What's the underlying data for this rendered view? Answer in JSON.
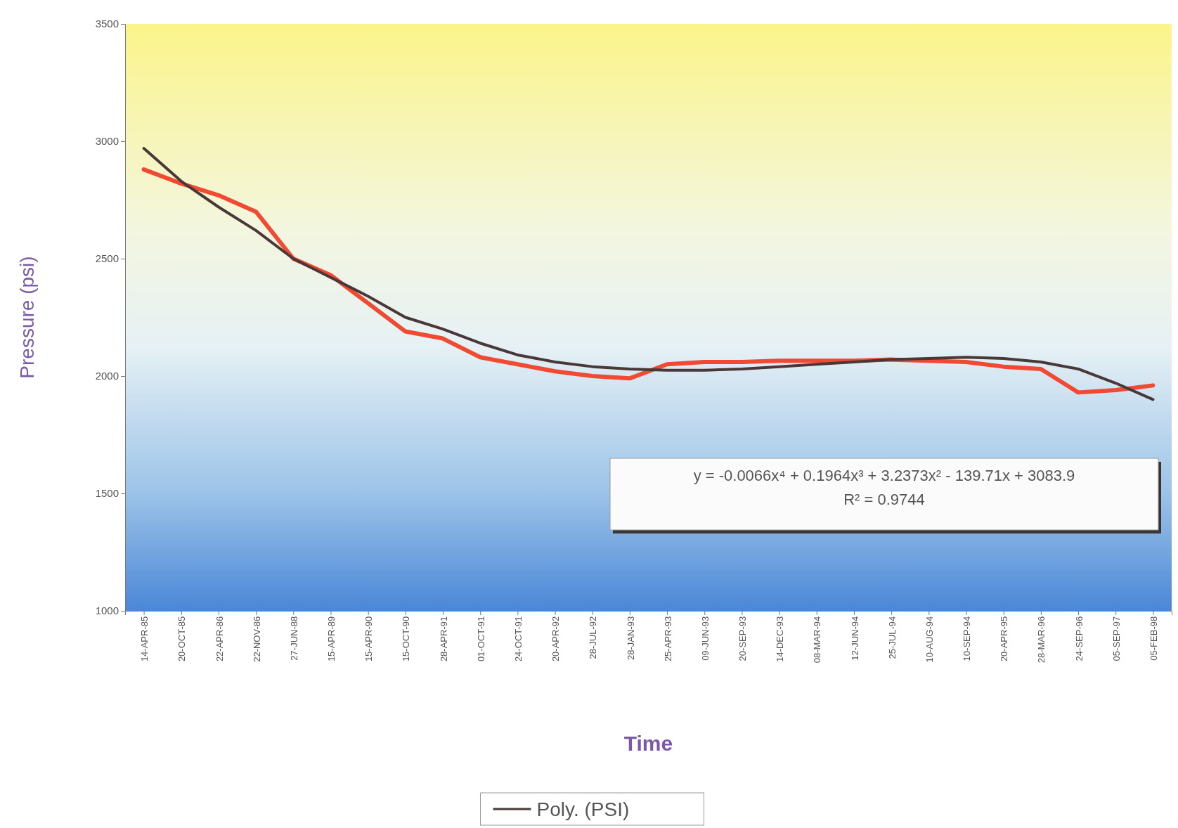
{
  "chart_data": {
    "type": "line",
    "xlabel": "Time",
    "ylabel": "Pressure (psi)",
    "categories": [
      "14-APR-85",
      "20-OCT-85",
      "22-APR-86",
      "22-NOV-86",
      "27-JUN-88",
      "15-APR-89",
      "15-APR-90",
      "15-OCT-90",
      "28-APR-91",
      "01-OCT-91",
      "24-OCT-91",
      "20-APR-92",
      "28-JUL-92",
      "28-JAN-93",
      "25-APR-93",
      "09-JUN-93",
      "20-SEP-93",
      "14-DEC-93",
      "08-MAR-94",
      "12-JUN-94",
      "25-JUL-94",
      "10-AUG-94",
      "10-SEP-94",
      "20-APR-95",
      "28-MAR-96",
      "24-SEP-96",
      "05-SEP-97",
      "05-FEB-98"
    ],
    "series": [
      {
        "type": "line",
        "color": "#f04a32",
        "values": [
          2880,
          2820,
          2770,
          2700,
          2500,
          2430,
          2310,
          2190,
          2160,
          2080,
          2050,
          2020,
          2000,
          1990,
          2050,
          2060,
          2060,
          2065,
          2065,
          2065,
          2070,
          2065,
          2060,
          2040,
          2030,
          1930,
          1940,
          1960
        ]
      },
      {
        "type": "line",
        "name": "Poly. (PSI)",
        "color": "#4a3838",
        "values": [
          2970,
          2830,
          2720,
          2620,
          2500,
          2420,
          2340,
          2250,
          2200,
          2140,
          2090,
          2060,
          2040,
          2030,
          2025,
          2025,
          2030,
          2040,
          2050,
          2060,
          2070,
          2075,
          2080,
          2075,
          2060,
          2030,
          1970,
          1900
        ]
      }
    ],
    "ylim": [
      1000,
      3500
    ],
    "yticks": [
      1000,
      1500,
      2000,
      2500,
      3000,
      3500
    ],
    "annotations": [
      "y = -0.0066x⁴ + 0.1964x³ + 3.2373x² - 139.71x + 3083.9",
      "R² = 0.9744"
    ],
    "legend": "bottom",
    "grid": false
  }
}
